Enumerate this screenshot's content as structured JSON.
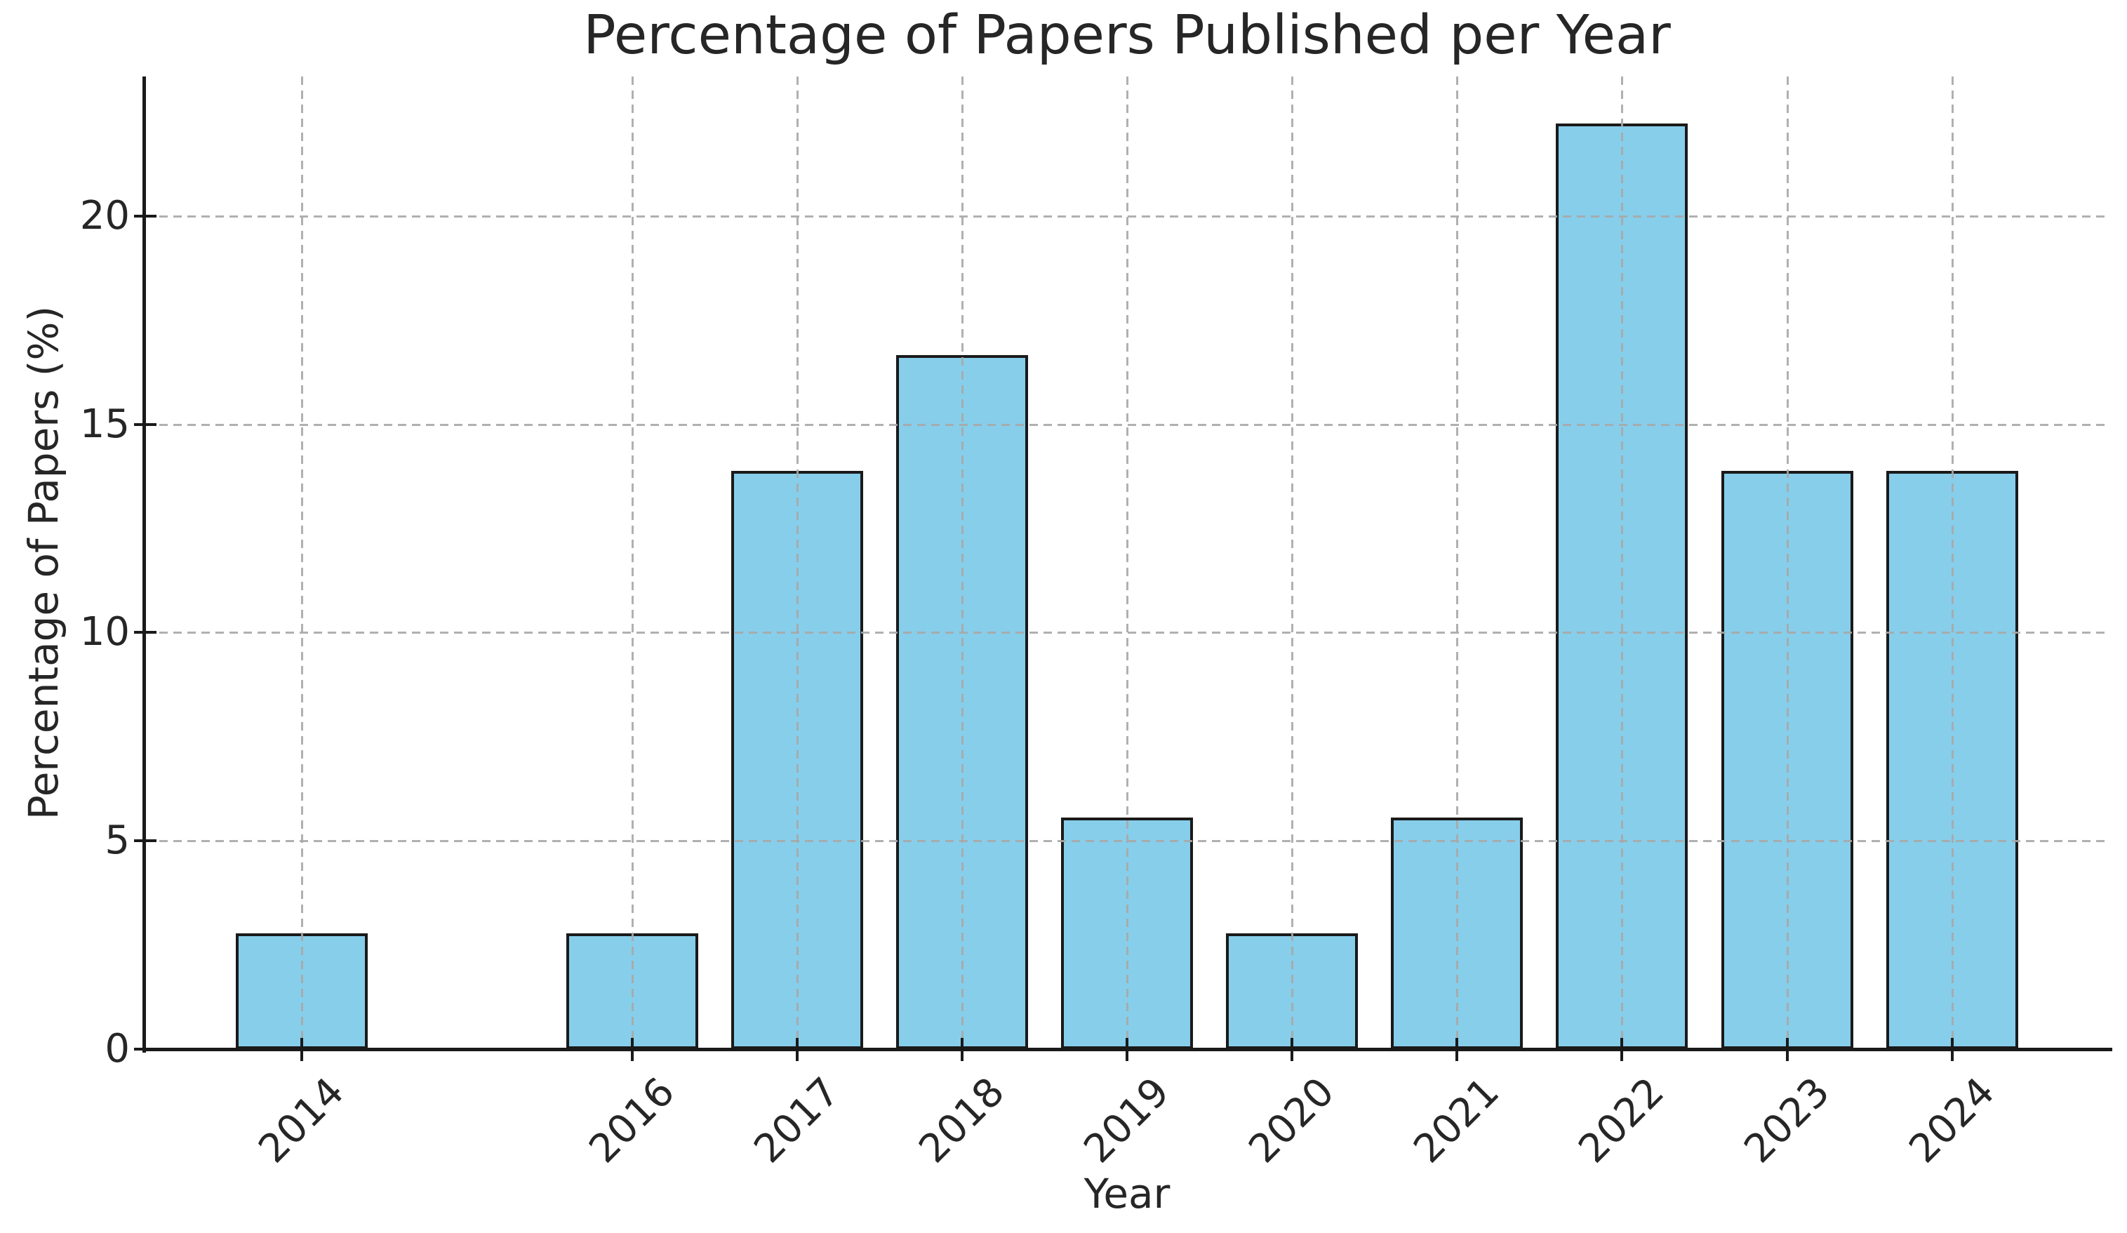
{
  "chart_data": {
    "type": "bar",
    "title": "Percentage of Papers Published per Year",
    "xlabel": "Year",
    "ylabel": "Percentage of Papers (%)",
    "categories": [
      "2014",
      "2016",
      "2017",
      "2018",
      "2019",
      "2020",
      "2021",
      "2022",
      "2023",
      "2024"
    ],
    "x_values": [
      2014,
      2016,
      2017,
      2018,
      2019,
      2020,
      2021,
      2022,
      2023,
      2024
    ],
    "values": [
      2.78,
      2.78,
      13.89,
      16.67,
      5.56,
      2.78,
      5.56,
      22.22,
      13.89,
      13.89
    ],
    "yticks": [
      0,
      5,
      10,
      15,
      20
    ],
    "ytick_labels": [
      "0",
      "5",
      "10",
      "15",
      "20"
    ],
    "xlim": [
      2013.05,
      2024.95
    ],
    "ylim": [
      0,
      23.35
    ],
    "bar_width_years": 0.8,
    "grid": true,
    "grid_style": "dashed",
    "legend": null,
    "colors": {
      "bar_fill": "#87CEEB",
      "bar_edge": "#1a1a1a",
      "grid": "rgba(168,168,168,0.9)",
      "axis": "#1a1a1a",
      "text": "#262626",
      "background": "#ffffff"
    }
  }
}
